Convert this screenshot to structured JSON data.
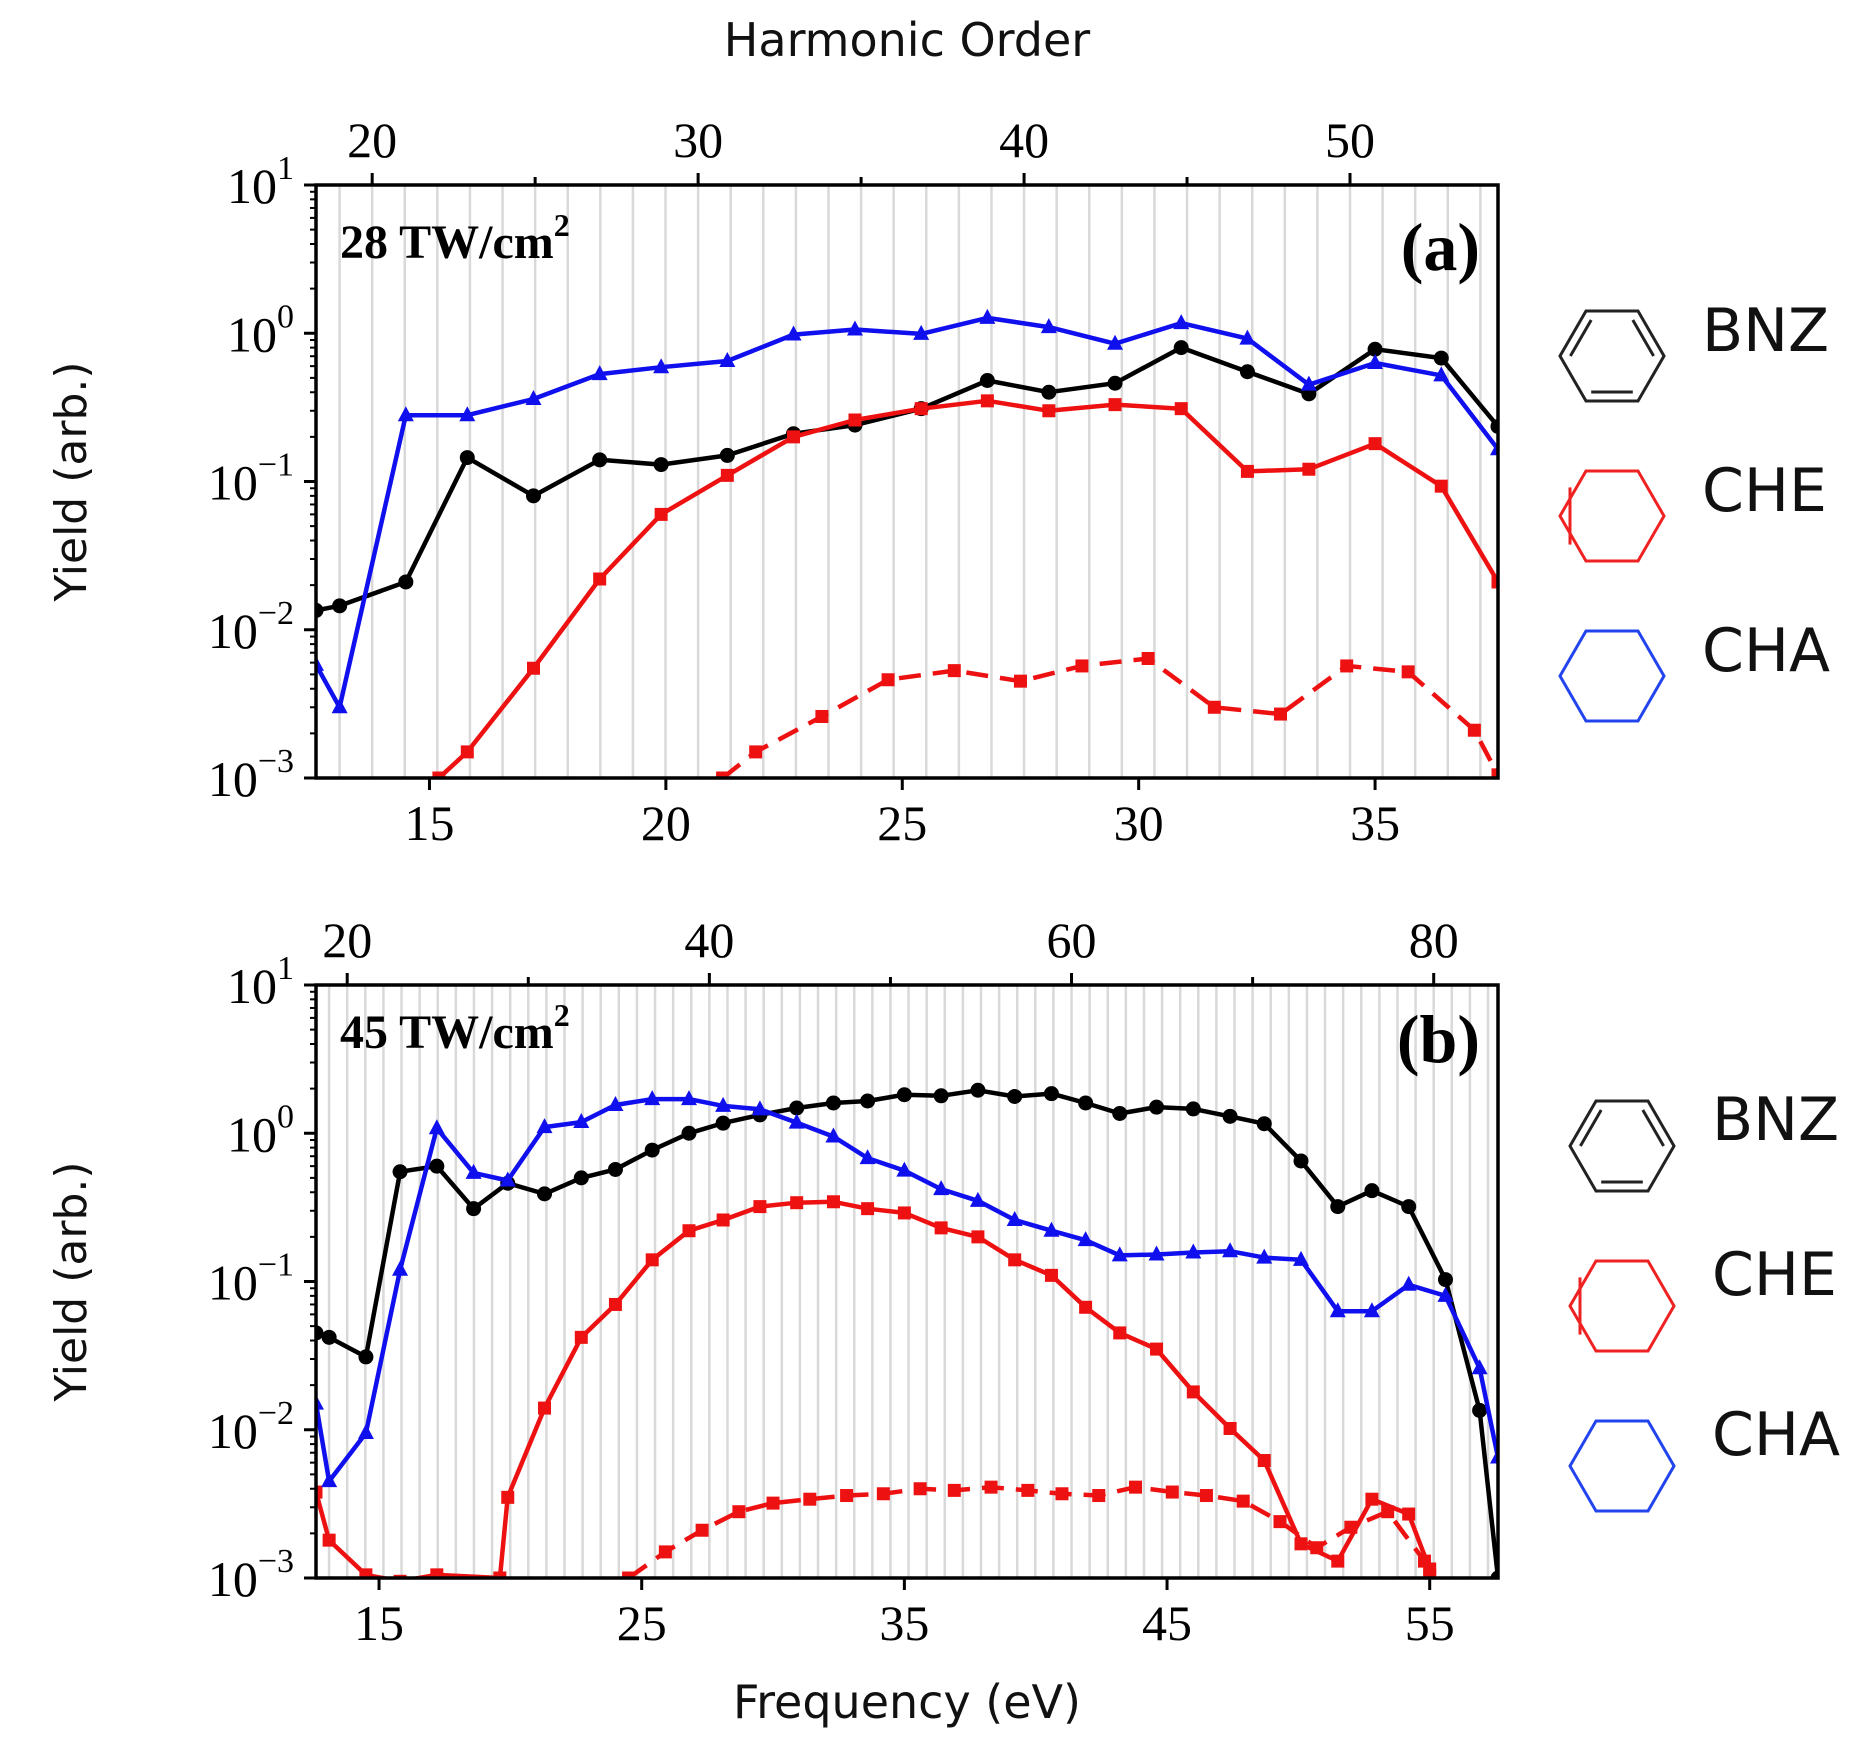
{
  "chart_data": [
    {
      "type": "line",
      "panel_label": "(a)",
      "intensity_label": "28 TW/cm",
      "intensity_sup": "2",
      "xlabel": "",
      "top_xlabel": "Harmonic Order",
      "ylabel": "Yield (arb.)",
      "y_scale": "log",
      "xlim": [
        12.6,
        37.6
      ],
      "ylim": [
        0.001,
        10
      ],
      "x_ticks": [
        15,
        20,
        25,
        30,
        35
      ],
      "top_ticks": [
        20,
        30,
        40,
        50
      ],
      "top_tick_energy_factor": 0.6894,
      "y_tick_base": "10",
      "y_tick_exponents": [
        "1",
        "0",
        "−1",
        "−2",
        "−3"
      ],
      "y_tick_values": [
        10,
        1,
        0.1,
        0.01,
        0.001
      ],
      "grid": "vertical",
      "series": [
        {
          "name": "BNZ",
          "color": "#000000",
          "marker": "circle",
          "dashed": false,
          "x": [
            12.6,
            13.1,
            14.5,
            15.8,
            17.2,
            18.6,
            19.9,
            21.3,
            22.7,
            24.0,
            25.4,
            26.8,
            28.1,
            29.5,
            30.9,
            32.3,
            33.6,
            35.0,
            36.4,
            37.6
          ],
          "y": [
            0.0135,
            0.0145,
            0.021,
            0.145,
            0.08,
            0.14,
            0.13,
            0.15,
            0.21,
            0.24,
            0.31,
            0.48,
            0.4,
            0.46,
            0.8,
            0.55,
            0.39,
            0.78,
            0.68,
            0.235
          ]
        },
        {
          "name": "CHE",
          "color": "#ee1111",
          "marker": "square",
          "dashed": false,
          "x": [
            15.2,
            15.8,
            17.2,
            18.6,
            19.9,
            21.3,
            22.7,
            24.0,
            25.4,
            26.8,
            28.1,
            29.5,
            30.9,
            32.3,
            33.6,
            35.0,
            36.4,
            37.6
          ],
          "y": [
            0.001,
            0.0015,
            0.0055,
            0.022,
            0.06,
            0.11,
            0.2,
            0.26,
            0.31,
            0.35,
            0.3,
            0.33,
            0.31,
            0.117,
            0.121,
            0.18,
            0.093,
            0.021
          ]
        },
        {
          "name": "CHE (dashed)",
          "color": "#ee1111",
          "marker": "square",
          "dashed": true,
          "x": [
            21.2,
            21.9,
            23.3,
            24.7,
            26.1,
            27.5,
            28.8,
            30.2,
            31.6,
            33.0,
            34.4,
            35.7,
            37.1,
            37.6
          ],
          "y": [
            0.001,
            0.0015,
            0.0026,
            0.0046,
            0.0053,
            0.0045,
            0.0057,
            0.0064,
            0.003,
            0.0027,
            0.0057,
            0.0052,
            0.0021,
            0.00105
          ]
        },
        {
          "name": "CHA",
          "color": "#1010ee",
          "marker": "triangle",
          "dashed": false,
          "x": [
            12.6,
            13.1,
            14.5,
            15.8,
            17.2,
            18.6,
            19.9,
            21.3,
            22.7,
            24.0,
            25.4,
            26.8,
            28.1,
            29.5,
            30.9,
            32.3,
            33.6,
            35.0,
            36.4,
            37.6
          ],
          "y": [
            0.0058,
            0.003,
            0.28,
            0.28,
            0.36,
            0.53,
            0.59,
            0.65,
            0.98,
            1.06,
            0.99,
            1.27,
            1.1,
            0.85,
            1.17,
            0.92,
            0.45,
            0.63,
            0.52,
            0.165
          ]
        }
      ]
    },
    {
      "type": "line",
      "panel_label": "(b)",
      "intensity_label": "45 TW/cm",
      "intensity_sup": "2",
      "xlabel": "Frequency (eV)",
      "top_xlabel": "",
      "ylabel": "Yield (arb.)",
      "y_scale": "log",
      "xlim": [
        12.6,
        57.6
      ],
      "ylim": [
        0.001,
        10
      ],
      "x_ticks": [
        15,
        25,
        35,
        45,
        55
      ],
      "top_ticks": [
        20,
        40,
        60,
        80
      ],
      "top_tick_energy_factor": 0.6894,
      "y_tick_base": "10",
      "y_tick_exponents": [
        "1",
        "0",
        "−1",
        "−2",
        "−3"
      ],
      "y_tick_values": [
        10,
        1,
        0.1,
        0.01,
        0.001
      ],
      "grid": "vertical",
      "series": [
        {
          "name": "BNZ",
          "color": "#000000",
          "marker": "circle",
          "dashed": false,
          "x": [
            12.6,
            13.1,
            14.5,
            15.8,
            17.2,
            18.6,
            19.9,
            21.3,
            22.7,
            24.0,
            25.4,
            26.8,
            28.1,
            29.5,
            30.9,
            32.3,
            33.6,
            35.0,
            36.4,
            37.8,
            39.2,
            40.6,
            41.9,
            43.2,
            44.6,
            46.0,
            47.4,
            48.7,
            50.1,
            51.5,
            52.8,
            54.2,
            55.6,
            56.9,
            57.6
          ],
          "y": [
            0.045,
            0.042,
            0.031,
            0.55,
            0.6,
            0.31,
            0.46,
            0.39,
            0.5,
            0.57,
            0.77,
            1.0,
            1.17,
            1.33,
            1.48,
            1.6,
            1.65,
            1.82,
            1.79,
            1.95,
            1.77,
            1.85,
            1.6,
            1.36,
            1.5,
            1.46,
            1.3,
            1.16,
            0.65,
            0.32,
            0.41,
            0.32,
            0.103,
            0.0135,
            0.001
          ]
        },
        {
          "name": "CHE",
          "color": "#ee1111",
          "marker": "square",
          "dashed": false,
          "x": [
            12.6,
            13.1,
            14.5,
            15.8,
            17.2,
            19.6,
            19.9,
            21.3,
            22.7,
            24.0,
            25.4,
            26.8,
            28.1,
            29.5,
            30.9,
            32.3,
            33.6,
            35.0,
            36.4,
            37.8,
            39.2,
            40.6,
            41.9,
            43.2,
            44.6,
            46.0,
            47.4,
            48.7,
            50.1,
            51.5,
            52.8,
            54.2,
            55.0
          ],
          "y": [
            0.0038,
            0.0018,
            0.00105,
            0.00095,
            0.00105,
            0.001,
            0.0035,
            0.014,
            0.042,
            0.07,
            0.14,
            0.22,
            0.26,
            0.32,
            0.34,
            0.345,
            0.31,
            0.29,
            0.23,
            0.2,
            0.14,
            0.11,
            0.067,
            0.045,
            0.035,
            0.018,
            0.0102,
            0.0062,
            0.0017,
            0.0013,
            0.0034,
            0.0027,
            0.00115
          ]
        },
        {
          "name": "CHE (dashed)",
          "color": "#ee1111",
          "marker": "square",
          "dashed": true,
          "x": [
            24.5,
            25.9,
            27.3,
            28.7,
            30.0,
            31.4,
            32.8,
            34.2,
            35.6,
            36.9,
            38.3,
            39.7,
            41.0,
            42.4,
            43.8,
            45.2,
            46.5,
            47.9,
            49.3,
            50.7,
            52.0,
            53.4,
            54.8,
            55.0
          ],
          "y": [
            0.001,
            0.0015,
            0.0021,
            0.0028,
            0.0032,
            0.0034,
            0.0036,
            0.0037,
            0.004,
            0.0039,
            0.0041,
            0.0039,
            0.0037,
            0.0036,
            0.0041,
            0.0038,
            0.0036,
            0.0033,
            0.0024,
            0.0016,
            0.0022,
            0.0028,
            0.0013,
            0.00105
          ]
        },
        {
          "name": "CHA",
          "color": "#1010ee",
          "marker": "triangle",
          "dashed": false,
          "x": [
            12.6,
            13.1,
            14.5,
            15.8,
            17.2,
            18.6,
            19.9,
            21.3,
            22.7,
            24.0,
            25.4,
            26.8,
            28.1,
            29.5,
            30.9,
            32.3,
            33.6,
            35.0,
            36.4,
            37.8,
            39.2,
            40.6,
            41.9,
            43.2,
            44.6,
            46.0,
            47.4,
            48.7,
            50.1,
            51.5,
            52.8,
            54.2,
            55.6,
            56.9,
            57.6
          ],
          "y": [
            0.015,
            0.0045,
            0.0095,
            0.12,
            1.08,
            0.54,
            0.48,
            1.1,
            1.19,
            1.55,
            1.7,
            1.7,
            1.53,
            1.45,
            1.18,
            0.95,
            0.68,
            0.56,
            0.42,
            0.35,
            0.26,
            0.22,
            0.19,
            0.15,
            0.152,
            0.157,
            0.16,
            0.145,
            0.14,
            0.063,
            0.063,
            0.095,
            0.08,
            0.026,
            0.0065
          ]
        }
      ]
    }
  ],
  "legend": [
    {
      "label": "BNZ",
      "color": "#222222",
      "icon": "benzene-ring-icon"
    },
    {
      "label": "CHE",
      "color": "#ee2222",
      "icon": "cyclohexene-ring-icon"
    },
    {
      "label": "CHA",
      "color": "#2244ee",
      "icon": "cyclohexane-ring-icon"
    }
  ]
}
